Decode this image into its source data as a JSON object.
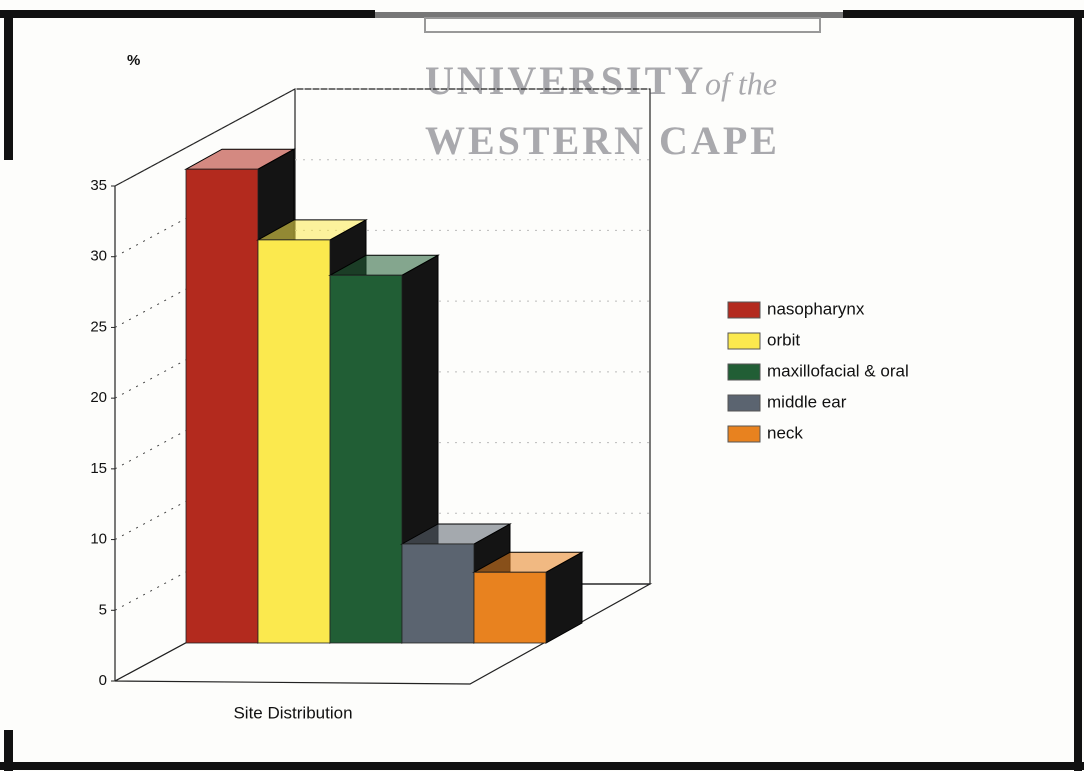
{
  "watermark": {
    "line1": "UNIVERSITY",
    "line1b": "of the",
    "line2": "WESTERN CAPE"
  },
  "chart_data": {
    "type": "bar3d",
    "y_label": "%",
    "categories": [
      "Site Distribution"
    ],
    "series": [
      {
        "name": "nasopharynx",
        "color": "#b32a1e",
        "values": [
          33.5
        ]
      },
      {
        "name": "orbit",
        "color": "#fbe94e",
        "values": [
          28.5
        ]
      },
      {
        "name": "maxillofacial & oral",
        "color": "#215e35",
        "values": [
          26
        ]
      },
      {
        "name": "middle ear",
        "color": "#5b6470",
        "values": [
          7
        ]
      },
      {
        "name": "neck",
        "color": "#e8821f",
        "values": [
          5
        ]
      }
    ],
    "ylim": [
      0,
      35
    ],
    "yticks": [
      0,
      5,
      10,
      15,
      20,
      25,
      30,
      35
    ],
    "grid": true,
    "legend": "right"
  }
}
